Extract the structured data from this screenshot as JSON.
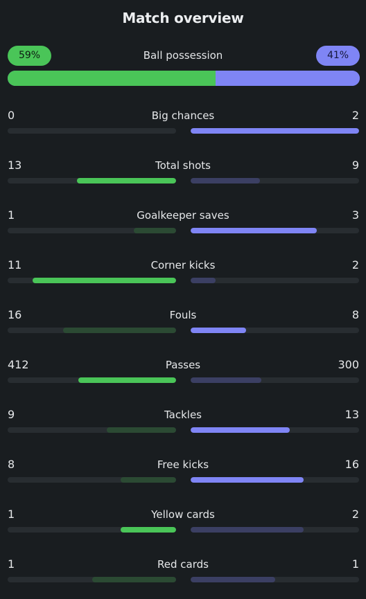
{
  "title": "Match overview",
  "possession": {
    "label": "Ball possession",
    "home": "59%",
    "away": "41%",
    "home_fraction": 0.59
  },
  "stats": [
    {
      "label": "Big chances",
      "home": "0",
      "away": "2",
      "home_fill": 0.0,
      "away_fill": 1.0,
      "leader": "away"
    },
    {
      "label": "Total shots",
      "home": "13",
      "away": "9",
      "home_fill": 0.59,
      "away_fill": 0.41,
      "leader": "home"
    },
    {
      "label": "Goalkeeper saves",
      "home": "1",
      "away": "3",
      "home_fill": 0.25,
      "away_fill": 0.75,
      "leader": "away"
    },
    {
      "label": "Corner kicks",
      "home": "11",
      "away": "2",
      "home_fill": 0.85,
      "away_fill": 0.15,
      "leader": "home"
    },
    {
      "label": "Fouls",
      "home": "16",
      "away": "8",
      "home_fill": 0.67,
      "away_fill": 0.33,
      "leader": "away"
    },
    {
      "label": "Passes",
      "home": "412",
      "away": "300",
      "home_fill": 0.58,
      "away_fill": 0.42,
      "leader": "home"
    },
    {
      "label": "Tackles",
      "home": "9",
      "away": "13",
      "home_fill": 0.41,
      "away_fill": 0.59,
      "leader": "away"
    },
    {
      "label": "Free kicks",
      "home": "8",
      "away": "16",
      "home_fill": 0.33,
      "away_fill": 0.67,
      "leader": "away"
    },
    {
      "label": "Yellow cards",
      "home": "1",
      "away": "2",
      "home_fill": 0.33,
      "away_fill": 0.67,
      "leader": "home"
    },
    {
      "label": "Red cards",
      "home": "1",
      "away": "1",
      "home_fill": 0.5,
      "away_fill": 0.5,
      "leader": "none"
    }
  ],
  "colors": {
    "home": "#4ac558",
    "away": "#7f85f5",
    "home_dim": "#2b4a33",
    "away_dim": "#3b3f63",
    "track": "#282d31",
    "background": "#191d20"
  }
}
